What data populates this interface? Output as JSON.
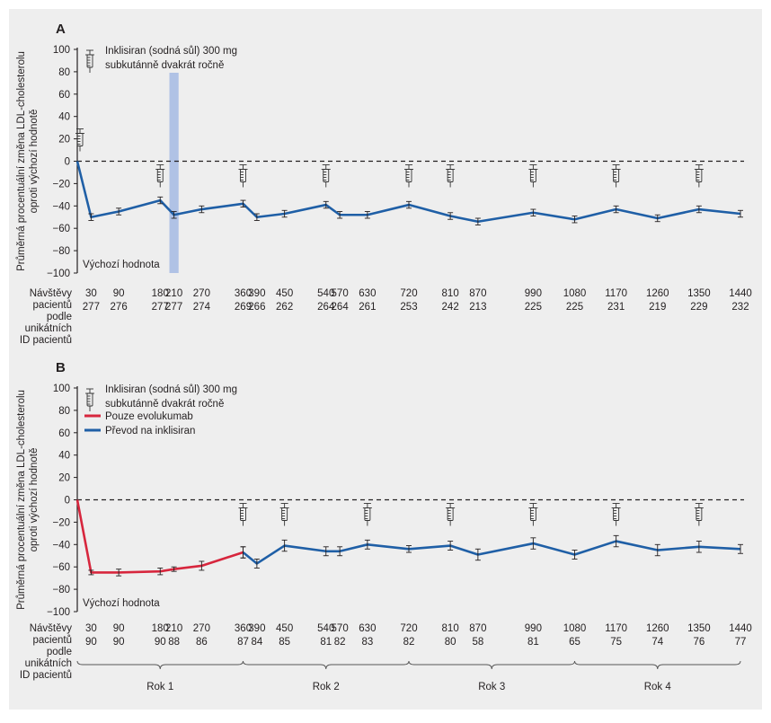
{
  "chart_data": [
    {
      "type": "line",
      "panel_letter": "A",
      "ylabel": [
        "Průměrná procentuální změna LDL-cholesterolu",
        "oproti výchozí hodnotě"
      ],
      "ylim": [
        -100,
        100
      ],
      "yticks": [
        "100",
        "80",
        "60",
        "40",
        "20",
        "0",
        "−20",
        "−40",
        "−60",
        "−80",
        "−100"
      ],
      "baseline_label": "Výchozí hodnota",
      "injection_note": [
        "Inklisiran (sodná sůl) 300 mg",
        "subkutánně dvakrát ročně"
      ],
      "row_header": [
        "Návštěvy",
        "pacientů",
        "podle",
        "unikátních",
        "ID pacientů"
      ],
      "visit_days": [
        "30",
        "90",
        "180",
        "210",
        "270",
        "360",
        "390",
        "450",
        "540",
        "570",
        "630",
        "720",
        "810",
        "870",
        "990",
        "1080",
        "1170",
        "1260",
        "1350",
        "1440"
      ],
      "patient_counts": [
        "277",
        "276",
        "277",
        "277",
        "274",
        "269",
        "266",
        "262",
        "264",
        "264",
        "261",
        "253",
        "242",
        "213",
        "225",
        "225",
        "231",
        "219",
        "229",
        "232"
      ],
      "highlight_band_x": [
        200,
        220
      ],
      "injection_days": [
        0,
        180,
        360,
        540,
        720,
        810,
        990,
        1170,
        1350
      ],
      "series": [
        {
          "color": "#1f5fa6",
          "x": [
            0,
            30,
            90,
            180,
            210,
            270,
            360,
            390,
            450,
            540,
            570,
            630,
            720,
            810,
            870,
            990,
            1080,
            1170,
            1260,
            1350,
            1440
          ],
          "y": [
            0,
            -50,
            -45,
            -35,
            -48,
            -43,
            -38,
            -50,
            -47,
            -39,
            -48,
            -48,
            -39,
            -49,
            -54,
            -46,
            -52,
            -43,
            -51,
            -43,
            -47
          ],
          "err": [
            0,
            3,
            3,
            3,
            3,
            3,
            3,
            3,
            3,
            3,
            3,
            3,
            3,
            3,
            3,
            3,
            3,
            3,
            3,
            3,
            3
          ]
        }
      ]
    },
    {
      "type": "line",
      "panel_letter": "B",
      "ylabel": [
        "Průměrná procentuální změna LDL-cholesterolu",
        "oproti výchozí hodnotě"
      ],
      "ylim": [
        -100,
        100
      ],
      "yticks": [
        "100",
        "80",
        "60",
        "40",
        "20",
        "0",
        "−20",
        "−40",
        "−60",
        "−80",
        "−100"
      ],
      "baseline_label": "Výchozí hodnota",
      "injection_note": [
        "Inklisiran (sodná sůl) 300 mg",
        "subkutánně dvakrát ročně"
      ],
      "legend": [
        {
          "name": "Pouze evolukumab",
          "color": "#d7263d"
        },
        {
          "name": "Převod na inklisiran",
          "color": "#1f5fa6"
        }
      ],
      "row_header": [
        "Návštěvy",
        "pacientů",
        "podle",
        "unikátních",
        "ID pacientů"
      ],
      "visit_days": [
        "30",
        "90",
        "180",
        "210",
        "270",
        "360",
        "390",
        "450",
        "540",
        "570",
        "630",
        "720",
        "810",
        "870",
        "990",
        "1080",
        "1170",
        "1260",
        "1350",
        "1440"
      ],
      "patient_counts": [
        "90",
        "90",
        "90",
        "88",
        "86",
        "87",
        "84",
        "85",
        "81",
        "82",
        "83",
        "82",
        "80",
        "58",
        "81",
        "65",
        "75",
        "74",
        "76",
        "77"
      ],
      "injection_days": [
        360,
        450,
        630,
        810,
        990,
        1170,
        1350
      ],
      "years": [
        {
          "label": "Rok 1",
          "from": 0,
          "to": 360
        },
        {
          "label": "Rok 2",
          "from": 360,
          "to": 720
        },
        {
          "label": "Rok 3",
          "from": 720,
          "to": 1080
        },
        {
          "label": "Rok 4",
          "from": 1080,
          "to": 1440
        }
      ],
      "series": [
        {
          "name": "Pouze evolukumab",
          "color": "#d7263d",
          "x": [
            0,
            30,
            90,
            180,
            210,
            270,
            360
          ],
          "y": [
            0,
            -65,
            -65,
            -64,
            -62,
            -59,
            -47
          ],
          "err": [
            0,
            2,
            3,
            3,
            2,
            4,
            5
          ]
        },
        {
          "name": "Převod na inklisiran",
          "color": "#1f5fa6",
          "x": [
            360,
            390,
            450,
            540,
            570,
            630,
            720,
            810,
            870,
            990,
            1080,
            1170,
            1260,
            1350,
            1440
          ],
          "y": [
            -47,
            -57,
            -41,
            -46,
            -46,
            -40,
            -44,
            -41,
            -49,
            -39,
            -49,
            -37,
            -45,
            -42,
            -44
          ],
          "err": [
            5,
            4,
            5,
            4,
            4,
            4,
            3,
            4,
            5,
            5,
            4,
            5,
            5,
            5,
            4
          ]
        }
      ]
    }
  ]
}
